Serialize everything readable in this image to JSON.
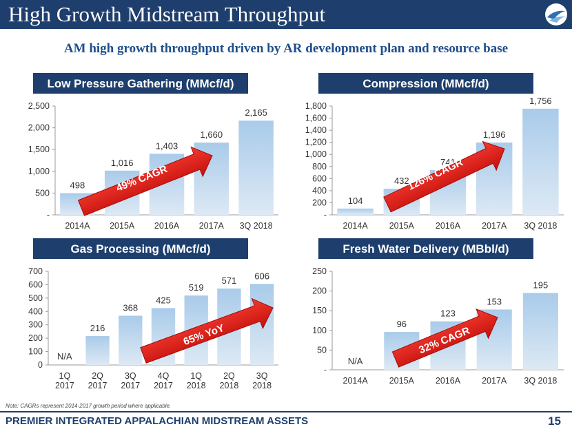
{
  "title": "High Growth Midstream Throughput",
  "subtitle": "AM high growth throughput driven by AR development plan and resource base",
  "note": "Note:  CAGRs represent 2014-2017 growth period where applicable.",
  "footer": "PREMIER INTEGRATED APPALACHIAN MIDSTREAM ASSETS",
  "page_number": "15",
  "colors": {
    "brand": "#1e3f6e",
    "bar": "#9ec2e4",
    "arrow": "#e8211c"
  },
  "chart_data": [
    {
      "type": "bar",
      "title": "Low Pressure Gathering (MMcf/d)",
      "categories": [
        [
          "2014A"
        ],
        [
          "2015A"
        ],
        [
          "2016A"
        ],
        [
          "2017A"
        ],
        [
          "3Q 2018"
        ]
      ],
      "values": [
        498,
        1016,
        1403,
        1660,
        2165
      ],
      "labels": [
        "498",
        "1,016",
        "1,403",
        "1,660",
        "2,165"
      ],
      "ylim": [
        0,
        2500
      ],
      "yticks": [
        "-",
        "500",
        "1,000",
        "1,500",
        "2,000",
        "2,500"
      ],
      "ytick_values": [
        0,
        500,
        1000,
        1500,
        2000,
        2500
      ],
      "annotation": "49% CAGR"
    },
    {
      "type": "bar",
      "title": "Compression (MMcf/d)",
      "categories": [
        [
          "2014A"
        ],
        [
          "2015A"
        ],
        [
          "2016A"
        ],
        [
          "2017A"
        ],
        [
          "3Q 2018"
        ]
      ],
      "values": [
        104,
        432,
        741,
        1196,
        1756
      ],
      "labels": [
        "104",
        "432",
        "741",
        "1,196",
        "1,756"
      ],
      "ylim": [
        0,
        1800
      ],
      "yticks": [
        "-",
        "200",
        "400",
        "600",
        "800",
        "1,000",
        "1,200",
        "1,400",
        "1,600",
        "1,800"
      ],
      "ytick_values": [
        0,
        200,
        400,
        600,
        800,
        1000,
        1200,
        1400,
        1600,
        1800
      ],
      "annotation": "126% CAGR"
    },
    {
      "type": "bar",
      "title": "Gas Processing (MMcf/d)",
      "categories": [
        [
          "1Q",
          "2017"
        ],
        [
          "2Q",
          "2017"
        ],
        [
          "3Q",
          "2017"
        ],
        [
          "4Q",
          "2017"
        ],
        [
          "1Q",
          "2018"
        ],
        [
          "2Q",
          "2018"
        ],
        [
          "3Q",
          "2018"
        ]
      ],
      "values": [
        0,
        216,
        368,
        425,
        519,
        571,
        606
      ],
      "labels": [
        "N/A",
        "216",
        "368",
        "425",
        "519",
        "571",
        "606"
      ],
      "ylim": [
        0,
        700
      ],
      "yticks": [
        "0",
        "100",
        "200",
        "300",
        "400",
        "500",
        "600",
        "700"
      ],
      "ytick_values": [
        0,
        100,
        200,
        300,
        400,
        500,
        600,
        700
      ],
      "annotation": "65% YoY"
    },
    {
      "type": "bar",
      "title": "Fresh Water Delivery (MBbl/d)",
      "categories": [
        [
          "2014A"
        ],
        [
          "2015A"
        ],
        [
          "2016A"
        ],
        [
          "2017A"
        ],
        [
          "3Q 2018"
        ]
      ],
      "values": [
        0,
        96,
        123,
        153,
        195
      ],
      "labels": [
        "N/A",
        "96",
        "123",
        "153",
        "195"
      ],
      "ylim": [
        0,
        250
      ],
      "yticks": [
        "-",
        "50",
        "100",
        "150",
        "200",
        "250"
      ],
      "ytick_values": [
        0,
        50,
        100,
        150,
        200,
        250
      ],
      "annotation": "32% CAGR"
    }
  ]
}
